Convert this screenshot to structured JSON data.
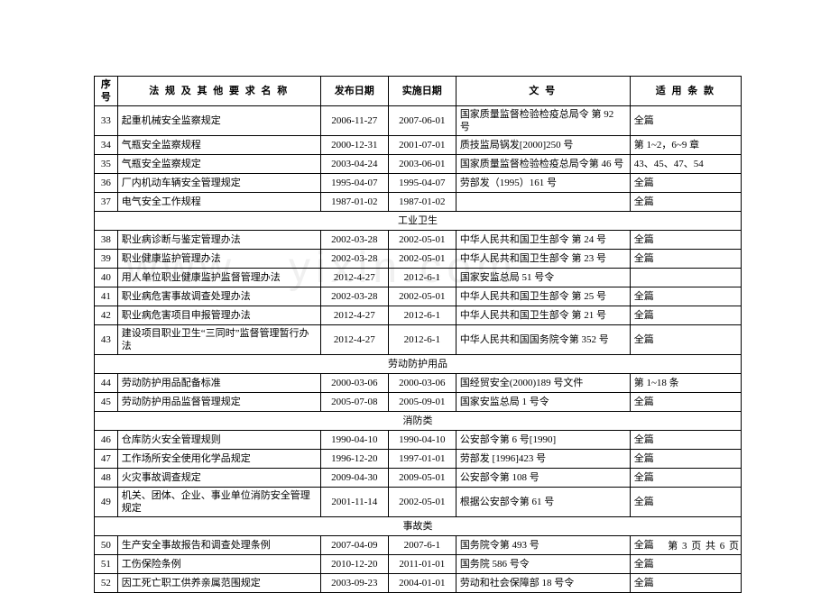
{
  "table": {
    "headers": {
      "seq": "序号",
      "name": "法 规 及 其 他 要 求 名 称",
      "pub": "发布日期",
      "impl": "实施日期",
      "doc": "文 号",
      "scope": "适 用 条 款"
    },
    "sections": [
      {
        "rows": [
          {
            "seq": "33",
            "name": "起重机械安全监察规定",
            "pub": "2006-11-27",
            "impl": "2007-06-01",
            "doc": "国家质量监督检验检疫总局令 第 92 号",
            "scope": "全篇"
          },
          {
            "seq": "34",
            "name": "气瓶安全监察规程",
            "pub": "2000-12-31",
            "impl": "2001-07-01",
            "doc": "质技监局锅发[2000]250 号",
            "scope": "第 1~2，6~9 章"
          },
          {
            "seq": "35",
            "name": "气瓶安全监察规定",
            "pub": "2003-04-24",
            "impl": "2003-06-01",
            "doc": "国家质量监督检验检疫总局令第 46 号",
            "scope": "43、45、47、54"
          },
          {
            "seq": "36",
            "name": "厂内机动车辆安全管理规定",
            "pub": "1995-04-07",
            "impl": "1995-04-07",
            "doc": "劳部发（1995）161 号",
            "scope": "全篇"
          },
          {
            "seq": "37",
            "name": "电气安全工作规程",
            "pub": "1987-01-02",
            "impl": "1987-01-02",
            "doc": "",
            "scope": "全篇"
          }
        ]
      },
      {
        "title": "工业卫生",
        "rows": [
          {
            "seq": "38",
            "name": "职业病诊断与鉴定管理办法",
            "pub": "2002-03-28",
            "impl": "2002-05-01",
            "doc": "中华人民共和国卫生部令 第 24 号",
            "scope": "全篇"
          },
          {
            "seq": "39",
            "name": "职业健康监护管理办法",
            "pub": "2002-03-28",
            "impl": "2002-05-01",
            "doc": "中华人民共和国卫生部令 第 23 号",
            "scope": "全篇"
          },
          {
            "seq": "40",
            "name": "用人单位职业健康监护监督管理办法",
            "pub": "2012-4-27",
            "impl": "2012-6-1",
            "doc": "国家安监总局 51 号令",
            "scope": ""
          },
          {
            "seq": "41",
            "name": "职业病危害事故调查处理办法",
            "pub": "2002-03-28",
            "impl": "2002-05-01",
            "doc": "中华人民共和国卫生部令 第 25 号",
            "scope": "全篇"
          },
          {
            "seq": "42",
            "name": "职业病危害项目申报管理办法",
            "pub": "2012-4-27",
            "impl": "2012-6-1",
            "doc": "中华人民共和国卫生部令 第 21 号",
            "scope": "全篇"
          },
          {
            "seq": "43",
            "name": "建设项目职业卫生“三同时”监督管理暂行办法",
            "pub": "2012-4-27",
            "impl": "2012-6-1",
            "doc": "中华人民共和国国务院令第 352 号",
            "scope": "全篇"
          }
        ]
      },
      {
        "title": "劳动防护用品",
        "rows": [
          {
            "seq": "44",
            "name": "劳动防护用品配备标准",
            "pub": "2000-03-06",
            "impl": "2000-03-06",
            "doc": "国经贸安全(2000)189 号文件",
            "scope": "第 1~18 条"
          },
          {
            "seq": "45",
            "name": "劳动防护用品监督管理规定",
            "pub": "2005-07-08",
            "impl": "2005-09-01",
            "doc": "国家安监总局 1 号令",
            "scope": "全篇"
          }
        ]
      },
      {
        "title": "消防类",
        "rows": [
          {
            "seq": "46",
            "name": "仓库防火安全管理规则",
            "pub": "1990-04-10",
            "impl": "1990-04-10",
            "doc": "公安部令第 6 号[1990]",
            "scope": "全篇"
          },
          {
            "seq": "47",
            "name": "工作场所安全使用化学品规定",
            "pub": "1996-12-20",
            "impl": "1997-01-01",
            "doc": "劳部发 [1996]423 号",
            "scope": "全篇"
          },
          {
            "seq": "48",
            "name": "火灾事故调查规定",
            "pub": "2009-04-30",
            "impl": "2009-05-01",
            "doc": "公安部令第 108 号",
            "scope": "全篇"
          },
          {
            "seq": "49",
            "name": "机关、团体、企业、事业单位消防安全管理规定",
            "pub": "2001-11-14",
            "impl": "2002-05-01",
            "doc": "根据公安部令第 61 号",
            "scope": "全篇"
          }
        ]
      },
      {
        "title": "事故类",
        "rows": [
          {
            "seq": "50",
            "name": "生产安全事故报告和调查处理条例",
            "pub": "2007-04-09",
            "impl": "2007-6-1",
            "doc": "国务院令第 493 号",
            "scope": "全篇"
          },
          {
            "seq": "51",
            "name": "工伤保险条例",
            "pub": "2010-12-20",
            "impl": "2011-01-01",
            "doc": "国务院 586 号令",
            "scope": "全篇"
          },
          {
            "seq": "52",
            "name": "因工死亡职工供养亲属范围规定",
            "pub": "2003-09-23",
            "impl": "2004-01-01",
            "doc": "劳动和社会保障部 18 号令",
            "scope": "全篇"
          }
        ]
      }
    ]
  },
  "footer": "第 3 页 共 6 页",
  "watermark": "www . yixin.com"
}
